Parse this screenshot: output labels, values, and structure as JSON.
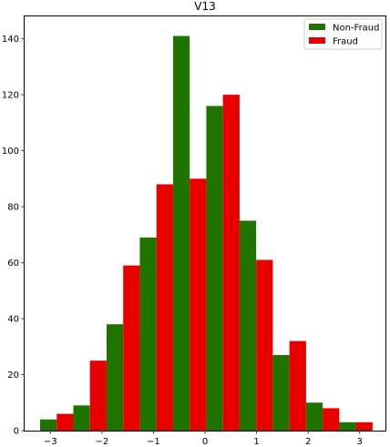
{
  "chart_data": {
    "type": "bar",
    "title": "V13",
    "xlabel": "",
    "ylabel": "",
    "xlim": [
      -3.5,
      3.5
    ],
    "ylim": [
      0,
      148
    ],
    "xticks": [
      -3,
      -2,
      -1,
      0,
      1,
      2,
      3
    ],
    "xtick_labels": [
      "−3",
      "−2",
      "−1",
      "0",
      "1",
      "2",
      "3"
    ],
    "yticks": [
      0,
      20,
      40,
      60,
      80,
      100,
      120,
      140
    ],
    "ytick_labels": [
      "0",
      "20",
      "40",
      "60",
      "80",
      "100",
      "120",
      "140"
    ],
    "bin_edges": [
      -3.2,
      -2.555,
      -1.91,
      -1.265,
      -0.62,
      0.025,
      0.67,
      1.315,
      1.96,
      2.605,
      3.25
    ],
    "grid": false,
    "legend_position": "top-right",
    "series": [
      {
        "name": "Non-Fraud",
        "color": "#1f7400",
        "values": [
          4,
          9,
          38,
          69,
          141,
          116,
          75,
          27,
          10,
          3
        ]
      },
      {
        "name": "Fraud",
        "color": "#e80000",
        "values": [
          6,
          25,
          59,
          88,
          90,
          120,
          61,
          32,
          8,
          3
        ]
      }
    ]
  }
}
